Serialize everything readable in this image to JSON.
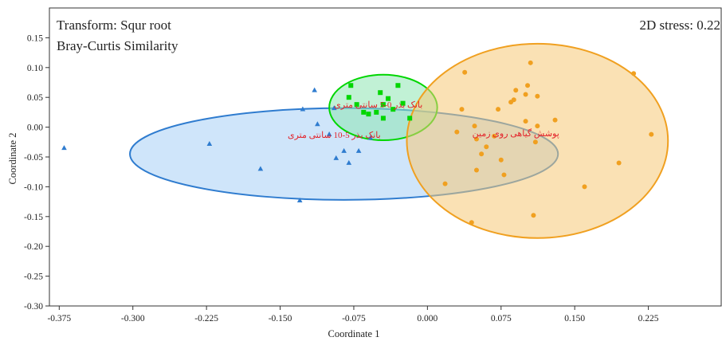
{
  "chart_data": {
    "type": "scatter",
    "title": "",
    "xlabel": "Coordinate 1",
    "ylabel": "Coordinate 2",
    "xlim": [
      -0.385,
      0.3
    ],
    "ylim": [
      -0.3,
      0.2
    ],
    "x_ticks": [
      -0.375,
      -0.3,
      -0.225,
      -0.15,
      -0.075,
      0.0,
      0.075,
      0.15,
      0.225
    ],
    "x_tick_labels": [
      "-0.375",
      "-0.300",
      "-0.225",
      "-0.150",
      "-0.075",
      "0.000",
      "0.075",
      "0.150",
      "0.225"
    ],
    "y_ticks": [
      0.15,
      0.1,
      0.05,
      0.0,
      -0.05,
      -0.1,
      -0.15,
      -0.2,
      -0.25,
      -0.3
    ],
    "y_tick_labels": [
      "0.15",
      "0.10",
      "0.05",
      "0.00",
      "-0.05",
      "-0.10",
      "-0.15",
      "-0.20",
      "-0.25",
      "-0.30"
    ],
    "annotations": {
      "transform": "Transform: Squr root",
      "similarity": "Bray-Curtis Similarity",
      "stress": "2D stress: 0.22"
    },
    "grid": false,
    "series": [
      {
        "label": "بانک بذر 5-10 سانتی متری",
        "marker": "triangle",
        "color": "#2f7ccf",
        "fill": "#a7d0f5",
        "label_pos": [
          -0.095,
          -0.018
        ],
        "ellipse": {
          "cx": -0.085,
          "cy": -0.045,
          "rx": 0.218,
          "ry": 0.077,
          "rotation": 0
        },
        "points": [
          [
            -0.37,
            -0.035
          ],
          [
            -0.222,
            -0.028
          ],
          [
            -0.17,
            -0.07
          ],
          [
            -0.13,
            -0.123
          ],
          [
            -0.127,
            0.03
          ],
          [
            -0.115,
            0.062
          ],
          [
            -0.112,
            0.005
          ],
          [
            -0.1,
            -0.012
          ],
          [
            -0.095,
            0.032
          ],
          [
            -0.093,
            -0.052
          ],
          [
            -0.085,
            -0.04
          ],
          [
            -0.08,
            -0.06
          ],
          [
            -0.07,
            -0.04
          ],
          [
            -0.058,
            -0.018
          ]
        ]
      },
      {
        "label": "بانک بذر 0-5 سانتی متری",
        "marker": "square",
        "color": "#00d600",
        "fill": "#8ee5b3",
        "label_pos": [
          -0.05,
          0.033
        ],
        "ellipse": {
          "cx": -0.045,
          "cy": 0.033,
          "rx": 0.055,
          "ry": 0.055,
          "rotation": 0
        },
        "points": [
          [
            -0.078,
            0.07
          ],
          [
            -0.08,
            0.05
          ],
          [
            -0.072,
            0.038
          ],
          [
            -0.065,
            0.025
          ],
          [
            -0.06,
            0.022
          ],
          [
            -0.048,
            0.058
          ],
          [
            -0.045,
            0.038
          ],
          [
            -0.04,
            0.048
          ],
          [
            -0.035,
            0.03
          ],
          [
            -0.045,
            0.015
          ],
          [
            -0.03,
            0.07
          ],
          [
            -0.025,
            0.04
          ],
          [
            -0.018,
            0.015
          ],
          [
            -0.052,
            0.025
          ]
        ]
      },
      {
        "label": "پوشش گیاهی روی زمین",
        "marker": "circle",
        "color": "#f0a020",
        "fill": "#f6c977",
        "label_pos": [
          0.09,
          -0.015
        ],
        "ellipse": {
          "cx": 0.112,
          "cy": -0.023,
          "rx": 0.133,
          "ry": 0.163,
          "rotation": 0
        },
        "points": [
          [
            0.018,
            -0.095
          ],
          [
            0.03,
            -0.008
          ],
          [
            0.035,
            0.03
          ],
          [
            0.045,
            -0.16
          ],
          [
            0.048,
            0.002
          ],
          [
            0.05,
            -0.072
          ],
          [
            0.05,
            -0.02
          ],
          [
            0.055,
            -0.045
          ],
          [
            0.06,
            -0.033
          ],
          [
            0.068,
            -0.015
          ],
          [
            0.072,
            0.03
          ],
          [
            0.075,
            -0.055
          ],
          [
            0.078,
            -0.08
          ],
          [
            0.085,
            0.042
          ],
          [
            0.088,
            0.046
          ],
          [
            0.09,
            0.062
          ],
          [
            0.1,
            0.055
          ],
          [
            0.102,
            0.07
          ],
          [
            0.105,
            0.108
          ],
          [
            0.108,
            -0.148
          ],
          [
            0.11,
            -0.025
          ],
          [
            0.112,
            0.052
          ],
          [
            0.112,
            0.002
          ],
          [
            0.1,
            0.01
          ],
          [
            0.13,
            0.012
          ],
          [
            0.16,
            -0.1
          ],
          [
            0.195,
            -0.06
          ],
          [
            0.21,
            0.09
          ],
          [
            0.228,
            -0.012
          ],
          [
            0.038,
            0.092
          ]
        ]
      }
    ]
  }
}
